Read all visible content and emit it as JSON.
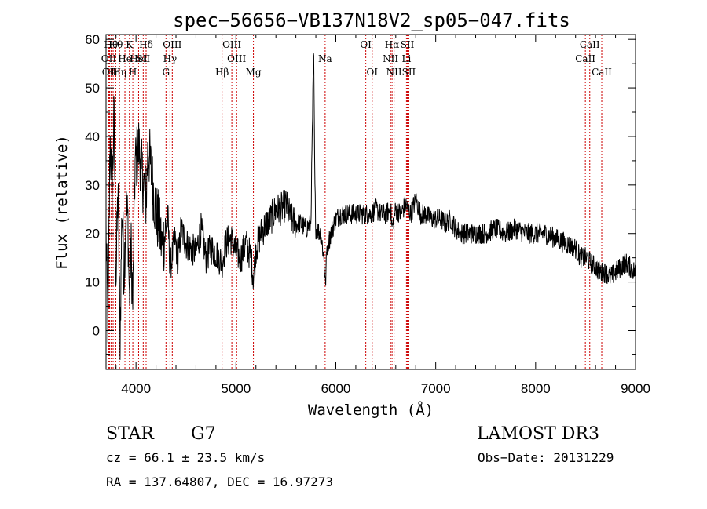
{
  "chart_data": {
    "type": "line",
    "title": "spec−56656−VB137N18V2_sp05−047.fits",
    "xlabel": "Wavelength (Å)",
    "ylabel": "Flux (relative)",
    "xlim": [
      3700,
      9000
    ],
    "ylim": [
      -8,
      61
    ],
    "xticks": [
      4000,
      5000,
      6000,
      7000,
      8000,
      9000
    ],
    "xtick_labels": [
      "4000",
      "5000",
      "6000",
      "7000",
      "8000",
      "9000"
    ],
    "yticks": [
      0,
      10,
      20,
      30,
      40,
      50,
      60
    ],
    "ytick_labels": [
      "0",
      "10",
      "20",
      "30",
      "40",
      "50",
      "60"
    ],
    "spectrum_anchors": {
      "x": [
        3700,
        3720,
        3740,
        3760,
        3780,
        3800,
        3820,
        3840,
        3860,
        3880,
        3900,
        3920,
        3934,
        3950,
        3968,
        3990,
        4010,
        4030,
        4060,
        4080,
        4101,
        4120,
        4150,
        4180,
        4200,
        4230,
        4260,
        4290,
        4320,
        4340,
        4360,
        4390,
        4420,
        4450,
        4500,
        4550,
        4600,
        4650,
        4700,
        4750,
        4800,
        4861,
        4900,
        4950,
        5000,
        5050,
        5100,
        5150,
        5175,
        5200,
        5250,
        5300,
        5350,
        5400,
        5450,
        5500,
        5550,
        5600,
        5650,
        5700,
        5750,
        5770,
        5778,
        5790,
        5800,
        5850,
        5880,
        5890,
        5896,
        5910,
        5950,
        6000,
        6050,
        6100,
        6150,
        6200,
        6250,
        6300,
        6350,
        6400,
        6450,
        6500,
        6550,
        6563,
        6600,
        6650,
        6700,
        6750,
        6800,
        6850,
        6900,
        6950,
        7000,
        7050,
        7100,
        7150,
        7200,
        7250,
        7300,
        7400,
        7500,
        7600,
        7700,
        7800,
        7900,
        8000,
        8100,
        8200,
        8300,
        8400,
        8450,
        8500,
        8550,
        8600,
        8650,
        8700,
        8750,
        8800,
        8850,
        8900,
        8950,
        9000
      ],
      "y": [
        20,
        0,
        40,
        28,
        44,
        10,
        30,
        -2,
        26,
        12,
        25,
        22,
        6,
        18,
        5,
        34,
        36,
        38,
        32,
        30,
        27,
        38,
        33,
        28,
        24,
        22,
        17,
        20,
        23,
        13,
        15,
        19,
        14,
        21,
        18,
        17,
        16,
        21,
        15,
        17,
        16,
        14,
        18,
        19,
        16,
        15,
        18,
        15,
        11,
        17,
        20,
        22,
        23,
        25,
        25,
        26,
        23,
        22,
        22,
        21,
        22,
        48,
        58,
        30,
        21,
        20,
        15,
        12,
        9,
        17,
        20,
        23,
        24,
        24,
        24,
        24,
        24,
        24,
        24,
        25,
        24,
        24,
        25,
        21,
        25,
        24,
        26,
        24,
        27,
        24,
        24,
        23,
        23,
        23,
        22,
        23,
        21,
        20,
        20,
        20,
        20,
        21,
        20,
        21,
        20,
        20,
        20,
        19,
        18,
        17,
        15,
        15,
        14,
        13,
        12,
        12,
        11,
        12,
        13,
        14,
        13,
        12
      ]
    },
    "line_markers": [
      {
        "wavelength": 3727,
        "label": "OII",
        "row": 2
      },
      {
        "wavelength": 3735,
        "label": "OII",
        "row": 3
      },
      {
        "wavelength": 3750,
        "label": "Hθ",
        "row": 1
      },
      {
        "wavelength": 3771,
        "label": "Hη",
        "row": 3
      },
      {
        "wavelength": 3798,
        "label": "Hθ",
        "row": 1
      },
      {
        "wavelength": 3835,
        "label": "Hη",
        "row": 3
      },
      {
        "wavelength": 3889,
        "label": "He",
        "row": 2
      },
      {
        "wavelength": 3934,
        "label": "K",
        "row": 1
      },
      {
        "wavelength": 3968,
        "label": "H",
        "row": 3
      },
      {
        "wavelength": 4026,
        "label": "HeI",
        "row": 2
      },
      {
        "wavelength": 4072,
        "label": "SII",
        "row": 2
      },
      {
        "wavelength": 4101,
        "label": "Hδ",
        "row": 1
      },
      {
        "wavelength": 4300,
        "label": "G",
        "row": 3
      },
      {
        "wavelength": 4340,
        "label": "Hγ",
        "row": 2
      },
      {
        "wavelength": 4363,
        "label": "OIII",
        "row": 1
      },
      {
        "wavelength": 4861,
        "label": "Hβ",
        "row": 3
      },
      {
        "wavelength": 4959,
        "label": "OIII",
        "row": 1
      },
      {
        "wavelength": 5007,
        "label": "OIII",
        "row": 2
      },
      {
        "wavelength": 5175,
        "label": "Mg",
        "row": 3
      },
      {
        "wavelength": 5893,
        "label": "Na",
        "row": 2
      },
      {
        "wavelength": 6300,
        "label": "OI",
        "row": 1
      },
      {
        "wavelength": 6364,
        "label": "OI",
        "row": 3
      },
      {
        "wavelength": 6548,
        "label": "NII",
        "row": 2
      },
      {
        "wavelength": 6563,
        "label": "Hα",
        "row": 1
      },
      {
        "wavelength": 6583,
        "label": "NII",
        "row": 3
      },
      {
        "wavelength": 6707,
        "label": "Li",
        "row": 2
      },
      {
        "wavelength": 6716,
        "label": "SII",
        "row": 1
      },
      {
        "wavelength": 6731,
        "label": "SII",
        "row": 3
      },
      {
        "wavelength": 8498,
        "label": "CaII",
        "row": 2
      },
      {
        "wavelength": 8542,
        "label": "CaII",
        "row": 1
      },
      {
        "wavelength": 8662,
        "label": "CaII",
        "row": 3
      }
    ]
  },
  "info": {
    "object_class": "STAR",
    "subclass": "G7",
    "survey": "LAMOST DR3",
    "cz_line": "cz = 66.1 ± 23.5 km/s",
    "obs_date_line": "Obs−Date: 20131229",
    "radec_line": "RA = 137.64807, DEC =  16.97273"
  },
  "colors": {
    "spectrum": "#000000",
    "markers": "#cc0000",
    "axes": "#000000"
  }
}
